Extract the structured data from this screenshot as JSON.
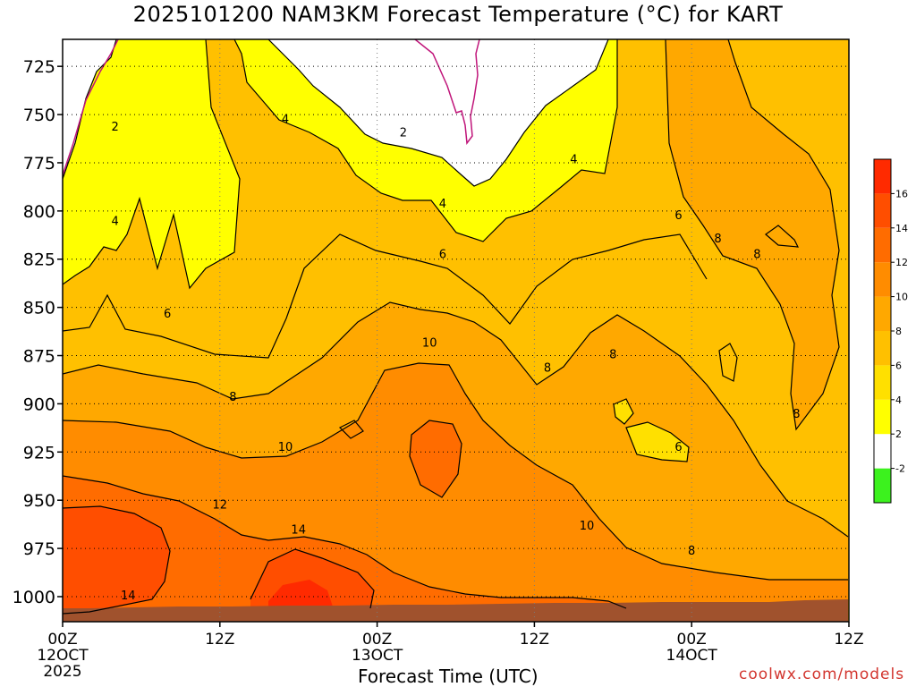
{
  "chart_data": {
    "type": "heatmap",
    "title": "2025101200 NAM3KM Forecast Temperature (°C) for KART",
    "xlabel": "Forecast Time (UTC)",
    "ylabel": "",
    "x_ticks": [
      {
        "label": "00Z",
        "date": "12OCT",
        "year": "2025",
        "hours": 0
      },
      {
        "label": "12Z",
        "date": "",
        "year": "",
        "hours": 12
      },
      {
        "label": "00Z",
        "date": "13OCT",
        "year": "",
        "hours": 24
      },
      {
        "label": "12Z",
        "date": "",
        "year": "",
        "hours": 36
      },
      {
        "label": "00Z",
        "date": "14OCT",
        "year": "",
        "hours": 48
      },
      {
        "label": "12Z",
        "date": "",
        "year": "",
        "hours": 60
      }
    ],
    "xlim": [
      0,
      60
    ],
    "y_ticks": [
      725,
      750,
      775,
      800,
      825,
      850,
      875,
      900,
      925,
      950,
      975,
      1000
    ],
    "ylim": [
      1013,
      711
    ],
    "y_scale": "pressure (inverted)",
    "grid": true,
    "colorbar": {
      "placement": "right",
      "labels": [
        "-2",
        "2",
        "4",
        "6",
        "8",
        "10",
        "12",
        "14",
        "16"
      ],
      "bins": [
        {
          "from": -4,
          "to": -2,
          "color": "#3cf21e"
        },
        {
          "from": -2,
          "to": 2,
          "color": "#ffffff"
        },
        {
          "from": 2,
          "to": 4,
          "color": "#ffff00"
        },
        {
          "from": 4,
          "to": 6,
          "color": "#ffe000"
        },
        {
          "from": 6,
          "to": 8,
          "color": "#ffc000"
        },
        {
          "from": 8,
          "to": 10,
          "color": "#ffa800"
        },
        {
          "from": 10,
          "to": 12,
          "color": "#ff8c00"
        },
        {
          "from": 12,
          "to": 14,
          "color": "#ff6c00"
        },
        {
          "from": 14,
          "to": 16,
          "color": "#ff4e00"
        },
        {
          "from": 16,
          "to": 18,
          "color": "#ff2a00"
        }
      ]
    },
    "contour_labels": [
      {
        "text": "2",
        "hours": 4,
        "pressure": 756
      },
      {
        "text": "2",
        "hours": 26,
        "pressure": 759
      },
      {
        "text": "4",
        "hours": 4,
        "pressure": 805
      },
      {
        "text": "4",
        "hours": 17,
        "pressure": 752
      },
      {
        "text": "4",
        "hours": 29,
        "pressure": 796
      },
      {
        "text": "4",
        "hours": 39,
        "pressure": 773
      },
      {
        "text": "6",
        "hours": 8,
        "pressure": 853
      },
      {
        "text": "6",
        "hours": 29,
        "pressure": 822
      },
      {
        "text": "6",
        "hours": 47,
        "pressure": 802
      },
      {
        "text": "6",
        "hours": 47,
        "pressure": 922
      },
      {
        "text": "8",
        "hours": 13,
        "pressure": 896
      },
      {
        "text": "8",
        "hours": 37,
        "pressure": 881
      },
      {
        "text": "8",
        "hours": 42,
        "pressure": 874
      },
      {
        "text": "8",
        "hours": 50,
        "pressure": 814
      },
      {
        "text": "8",
        "hours": 53,
        "pressure": 822
      },
      {
        "text": "8",
        "hours": 56,
        "pressure": 905
      },
      {
        "text": "8",
        "hours": 48,
        "pressure": 976
      },
      {
        "text": "10",
        "hours": 17,
        "pressure": 922
      },
      {
        "text": "10",
        "hours": 28,
        "pressure": 868
      },
      {
        "text": "10",
        "hours": 40,
        "pressure": 963
      },
      {
        "text": "12",
        "hours": 12,
        "pressure": 952
      },
      {
        "text": "14",
        "hours": 5,
        "pressure": 999
      },
      {
        "text": "14",
        "hours": 18,
        "pressure": 965
      }
    ],
    "terrain_color": "#a0522d"
  },
  "watermark": "coolwx.com/models"
}
